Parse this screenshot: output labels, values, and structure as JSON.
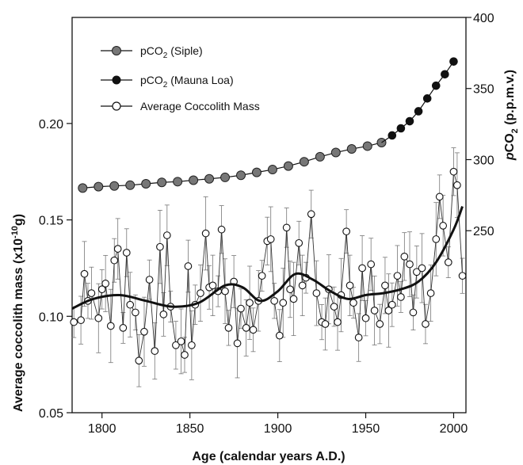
{
  "chart_data": {
    "type": "scatter",
    "x_axis": {
      "label": "Age (calendar years A.D.)",
      "range": [
        1783,
        2007
      ],
      "ticks": [
        1800,
        1850,
        1900,
        1950,
        2000
      ],
      "tick_labels": [
        "1800",
        "1850",
        "1900",
        "1950",
        "2000"
      ]
    },
    "y_axis_left": {
      "label": "Average coccolith mass (x10",
      "label_exponent": "-10",
      "label_unit": "g)",
      "range": [
        0.05,
        0.255
      ],
      "ticks": [
        0.05,
        0.1,
        0.15,
        0.2
      ],
      "tick_labels": [
        "0.05",
        "0.10",
        "0.15",
        "0.20"
      ]
    },
    "y_axis_right": {
      "label_italic": "p",
      "label_main": "CO",
      "label_sub": "2",
      "label_unit": " (p.p.m.v.)",
      "range": [
        122,
        400
      ],
      "ticks": [
        250,
        300,
        350,
        400
      ],
      "tick_labels": [
        "250",
        "300",
        "350",
        "400"
      ]
    },
    "legend": {
      "placement": "top-left",
      "items": [
        {
          "prefix": "pCO",
          "sub": "2",
          "suffix": " (Siple)",
          "marker": "gray-filled-circle"
        },
        {
          "prefix": "pCO",
          "sub": "2",
          "suffix": " (Mauna Loa)",
          "marker": "black-filled-circle"
        },
        {
          "prefix": "Average Coccolith Mass",
          "sub": "",
          "suffix": "",
          "marker": "open-circle"
        }
      ]
    },
    "series": [
      {
        "name": "pCO2 (Siple)",
        "axis": "right",
        "x": [
          1789,
          1798,
          1807,
          1816,
          1825,
          1834,
          1843,
          1852,
          1861,
          1870,
          1879,
          1888,
          1897,
          1906,
          1915,
          1924,
          1933,
          1942,
          1951,
          1959
        ],
        "y": [
          280,
          281,
          281.5,
          282,
          283,
          284,
          284.5,
          285.5,
          286.5,
          287.5,
          289,
          291,
          293,
          295.5,
          298.5,
          302,
          305,
          307.5,
          309.5,
          312
        ]
      },
      {
        "name": "pCO2 (Mauna Loa)",
        "axis": "right",
        "x": [
          1965,
          1970,
          1975,
          1980,
          1985,
          1990,
          1995,
          2000
        ],
        "y": [
          317,
          322,
          327,
          334,
          343,
          352,
          360,
          369
        ]
      },
      {
        "name": "Average Coccolith Mass",
        "axis": "left",
        "x": [
          1784,
          1788,
          1790,
          1792,
          1794,
          1798,
          1800,
          1802,
          1805,
          1807,
          1809,
          1812,
          1814,
          1816,
          1819,
          1821,
          1824,
          1827,
          1830,
          1833,
          1835,
          1837,
          1839,
          1842,
          1845,
          1847,
          1849,
          1851,
          1853,
          1856,
          1859,
          1861,
          1863,
          1866,
          1868,
          1870,
          1872,
          1875,
          1877,
          1879,
          1882,
          1884,
          1886,
          1889,
          1891,
          1894,
          1896,
          1898,
          1901,
          1903,
          1905,
          1907,
          1909,
          1912,
          1914,
          1916,
          1919,
          1922,
          1925,
          1927,
          1929,
          1932,
          1934,
          1936,
          1939,
          1941,
          1943,
          1946,
          1948,
          1950,
          1953,
          1955,
          1958,
          1961,
          1963,
          1965,
          1968,
          1970,
          1972,
          1975,
          1977,
          1979,
          1982,
          1984,
          1987,
          1990,
          1992,
          1994,
          1997,
          2000,
          2002,
          2005
        ],
        "y": [
          0.097,
          0.098,
          0.122,
          0.108,
          0.112,
          0.099,
          0.114,
          0.117,
          0.095,
          0.129,
          0.135,
          0.094,
          0.133,
          0.106,
          0.102,
          0.077,
          0.092,
          0.119,
          0.082,
          0.136,
          0.101,
          0.142,
          0.105,
          0.085,
          0.087,
          0.08,
          0.126,
          0.085,
          0.106,
          0.112,
          0.143,
          0.115,
          0.116,
          0.113,
          0.145,
          0.113,
          0.094,
          0.118,
          0.086,
          0.104,
          0.094,
          0.107,
          0.093,
          0.108,
          0.121,
          0.139,
          0.14,
          0.108,
          0.09,
          0.107,
          0.146,
          0.114,
          0.109,
          0.138,
          0.116,
          0.12,
          0.153,
          0.112,
          0.097,
          0.096,
          0.114,
          0.105,
          0.097,
          0.111,
          0.144,
          0.116,
          0.107,
          0.089,
          0.125,
          0.099,
          0.127,
          0.103,
          0.096,
          0.116,
          0.103,
          0.106,
          0.121,
          0.11,
          0.131,
          0.127,
          0.102,
          0.123,
          0.125,
          0.096,
          0.112,
          0.14,
          0.162,
          0.147,
          0.128,
          0.175,
          0.168,
          0.121
        ]
      },
      {
        "name": "Smoothed coccolith mass",
        "axis": "left",
        "x": [
          1783,
          1795,
          1810,
          1825,
          1840,
          1855,
          1870,
          1880,
          1890,
          1900,
          1910,
          1920,
          1930,
          1940,
          1950,
          1960,
          1970,
          1980,
          1990,
          2000,
          2005
        ],
        "y": [
          0.104,
          0.109,
          0.111,
          0.108,
          0.105,
          0.107,
          0.116,
          0.115,
          0.108,
          0.113,
          0.122,
          0.119,
          0.113,
          0.109,
          0.111,
          0.112,
          0.114,
          0.118,
          0.128,
          0.145,
          0.157
        ]
      }
    ]
  }
}
